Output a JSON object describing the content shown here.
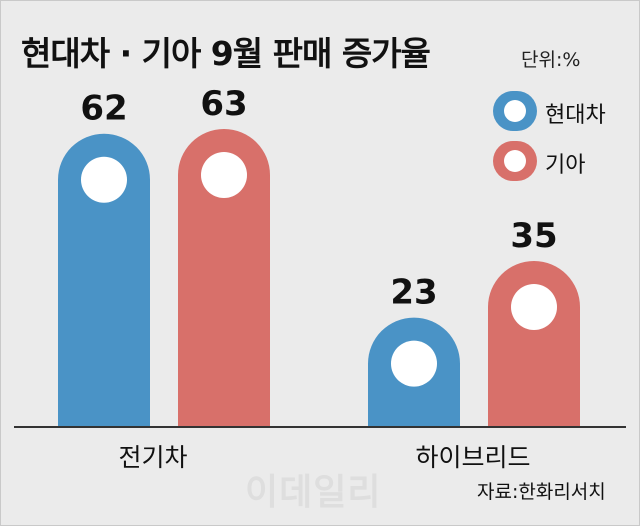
{
  "chart_data": {
    "type": "bar",
    "title": "현대차 · 기아 9월 판매 증가율",
    "unit_label": "단위:%",
    "categories": [
      "전기차",
      "하이브리드"
    ],
    "series": [
      {
        "name": "현대차",
        "color": "#4a93c6",
        "values": [
          62,
          23
        ]
      },
      {
        "name": "기아",
        "color": "#d8706a",
        "values": [
          63,
          35
        ]
      }
    ],
    "ylim": [
      0,
      70
    ],
    "legend_position": "top-right",
    "grid": false
  },
  "source": "자료:한화리서치",
  "watermark": "이데일리"
}
